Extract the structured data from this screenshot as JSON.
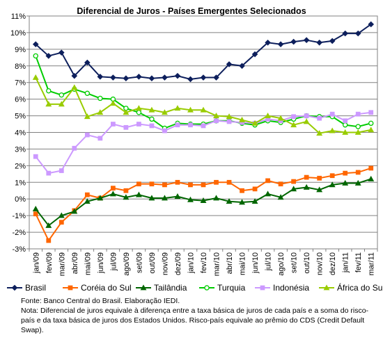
{
  "chart_data": {
    "type": "line",
    "title": "Diferencial de Juros - Países Emergentes Selecionados",
    "xlabel": "",
    "ylabel": "",
    "ylim": [
      -3,
      11
    ],
    "y_ticks": [
      -3,
      -2,
      -1,
      0,
      1,
      2,
      3,
      4,
      5,
      6,
      7,
      8,
      9,
      10,
      11
    ],
    "y_tick_labels": [
      "-3%",
      "-2%",
      "-1%",
      "0%",
      "1%",
      "2%",
      "3%",
      "4%",
      "5%",
      "6%",
      "7%",
      "8%",
      "9%",
      "10%",
      "11%"
    ],
    "grid": "horizontal",
    "legend_position": "bottom",
    "categories": [
      "jan/09",
      "fev/09",
      "mar/09",
      "abr/09",
      "mai/09",
      "jun/09",
      "jul/09",
      "ago/09",
      "set/09",
      "out/09",
      "nov/09",
      "dez/09",
      "jan/10",
      "fev/10",
      "mar/10",
      "abr/10",
      "mai/10",
      "jun/10",
      "jul/10",
      "ago/10",
      "set/10",
      "out/10",
      "nov/10",
      "dez/10",
      "jan/11",
      "fev/11",
      "mar/11"
    ],
    "series": [
      {
        "name": "Brasil",
        "color": "#0d1f5c",
        "marker": "diamond",
        "values": [
          9.3,
          8.6,
          8.8,
          7.4,
          8.2,
          7.35,
          7.3,
          7.25,
          7.35,
          7.25,
          7.3,
          7.4,
          7.2,
          7.3,
          7.3,
          8.1,
          8.0,
          8.7,
          9.4,
          9.3,
          9.45,
          9.55,
          9.4,
          9.5,
          9.95,
          9.95,
          10.5
        ]
      },
      {
        "name": "Coréia do Sul",
        "color": "#ff6600",
        "marker": "square",
        "values": [
          -0.9,
          -2.5,
          -1.4,
          -0.7,
          0.25,
          0.05,
          0.65,
          0.5,
          0.9,
          0.9,
          0.85,
          1.0,
          0.85,
          0.85,
          1.0,
          1.0,
          0.5,
          0.6,
          1.1,
          0.9,
          1.05,
          1.3,
          1.25,
          1.4,
          1.55,
          1.6,
          1.85
        ]
      },
      {
        "name": "Tailândia",
        "color": "#006600",
        "marker": "triangle",
        "values": [
          -0.6,
          -1.6,
          -1.0,
          -0.75,
          -0.15,
          0.05,
          0.3,
          0.1,
          0.25,
          0.05,
          0.05,
          0.15,
          -0.05,
          -0.1,
          0.05,
          -0.15,
          -0.2,
          -0.15,
          0.3,
          0.1,
          0.6,
          0.7,
          0.55,
          0.85,
          0.95,
          0.95,
          1.2
        ]
      },
      {
        "name": "Turquia",
        "color": "#00cc00",
        "marker": "circle",
        "values": [
          8.6,
          6.5,
          6.25,
          6.6,
          6.35,
          6.05,
          6.0,
          5.45,
          5.2,
          4.8,
          4.25,
          4.55,
          4.5,
          4.5,
          4.7,
          4.7,
          4.55,
          4.45,
          4.7,
          4.6,
          4.8,
          5.0,
          4.95,
          4.95,
          4.45,
          4.35,
          4.55
        ]
      },
      {
        "name": "Indonésia",
        "color": "#cc99ff",
        "marker": "square",
        "values": [
          2.55,
          1.55,
          1.7,
          3.05,
          3.85,
          3.65,
          4.5,
          4.3,
          4.5,
          4.4,
          4.1,
          4.45,
          4.45,
          4.4,
          4.7,
          4.65,
          4.6,
          4.55,
          4.8,
          4.7,
          4.95,
          5.0,
          4.85,
          5.1,
          4.7,
          5.1,
          5.2
        ]
      },
      {
        "name": "África do Sul",
        "color": "#99cc00",
        "marker": "triangle",
        "values": [
          7.3,
          5.7,
          5.7,
          6.7,
          4.95,
          5.2,
          5.75,
          5.2,
          5.45,
          5.35,
          5.2,
          5.45,
          5.35,
          5.35,
          5.0,
          4.95,
          4.75,
          4.55,
          5.0,
          4.85,
          4.45,
          4.65,
          3.95,
          4.1,
          4.0,
          4.0,
          4.15
        ]
      }
    ]
  },
  "notes": {
    "source": "Fonte: Banco Central do Brasil. Elaboração IEDI.",
    "note": "Nota: Diferencial de juros equivale à diferença entre a taxa básica de juros de cada país e a soma do risco-país e da taxa básica de juros dos Estados Unidos. Risco-país equivale ao prêmio do CDS (Credit Default Swap)."
  }
}
